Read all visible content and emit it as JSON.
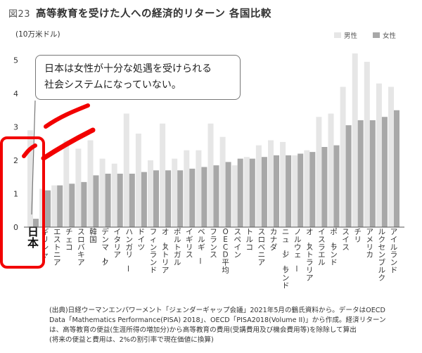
{
  "figure_label": "図23",
  "title": "高等教育を受けた人への経済的リターン 各国比較",
  "unit": "(10万米ドル)",
  "legend": {
    "male": "男性",
    "female": "女性"
  },
  "callout": {
    "line1": "日本は女性が十分な処遇を受けられる",
    "line2": "社会システムになっていない。"
  },
  "source": {
    "line1": "(出典)日経ウーマンエンパワーメント「ジェンダーギャップ会議」2021年5月の鶴氏資料から。データはOECD",
    "line2": "Data「Mathematics Performance(PISA) 2018」、OECD「PISA2018(Volume II)」から作成。経済リターン",
    "line3": "は、高等教育の便益(生涯所得の増加分)から高等教育の費用(受講費用及び機会費用等)を除除して算出",
    "line4": "(将来の便益と費用は、2%の割引率で現在価値に換算)"
  },
  "colors": {
    "male": "#e6e6e6",
    "female": "#a8a8a8",
    "highlight": "#f20000",
    "axis": "#555555"
  },
  "chart_data": {
    "type": "bar",
    "title": "高等教育を受けた人への経済的リターン 各国比較",
    "ylabel": "(10万米ドル)",
    "ylim": [
      0,
      5.2
    ],
    "yticks": [
      0,
      1,
      2,
      3,
      4,
      5
    ],
    "categories": [
      "日本",
      "ギリシャ",
      "エストニア",
      "チェコ",
      "スロバキア",
      "韓国",
      "デンマーク",
      "イタリア",
      "ハンガリー",
      "ドイツ",
      "フィンランド",
      "オーストリア",
      "ポルトガル",
      "イギリス",
      "ベルギー",
      "フランス",
      "OECD平均",
      "スペイン",
      "トルコ",
      "スロベニア",
      "カナダ",
      "ニュージーランド",
      "ノルウェー",
      "オーストラリア",
      "イスラエル",
      "ポーランド",
      "スイス",
      "チリ",
      "アメリカ",
      "ルクセンブルク",
      "アイルランド"
    ],
    "series": [
      {
        "name": "男性",
        "values": [
          2.9,
          1.15,
          1.25,
          2.6,
          2.35,
          2.6,
          2.05,
          1.9,
          3.4,
          2.8,
          2.0,
          3.1,
          2.05,
          2.3,
          2.3,
          3.1,
          2.7,
          1.85,
          2.1,
          2.45,
          2.6,
          2.55,
          2.15,
          2.3,
          3.3,
          3.4,
          4.2,
          5.2,
          4.95,
          4.3,
          4.2
        ]
      },
      {
        "name": "女性",
        "values": [
          0.25,
          1.1,
          1.25,
          1.3,
          1.35,
          1.55,
          1.6,
          1.6,
          1.6,
          1.65,
          1.7,
          1.7,
          1.7,
          1.75,
          1.8,
          1.85,
          1.95,
          2.05,
          2.05,
          2.1,
          2.15,
          2.15,
          2.2,
          2.25,
          2.4,
          2.45,
          3.05,
          3.2,
          3.2,
          3.3,
          3.5
        ]
      }
    ],
    "highlight": "日本"
  }
}
